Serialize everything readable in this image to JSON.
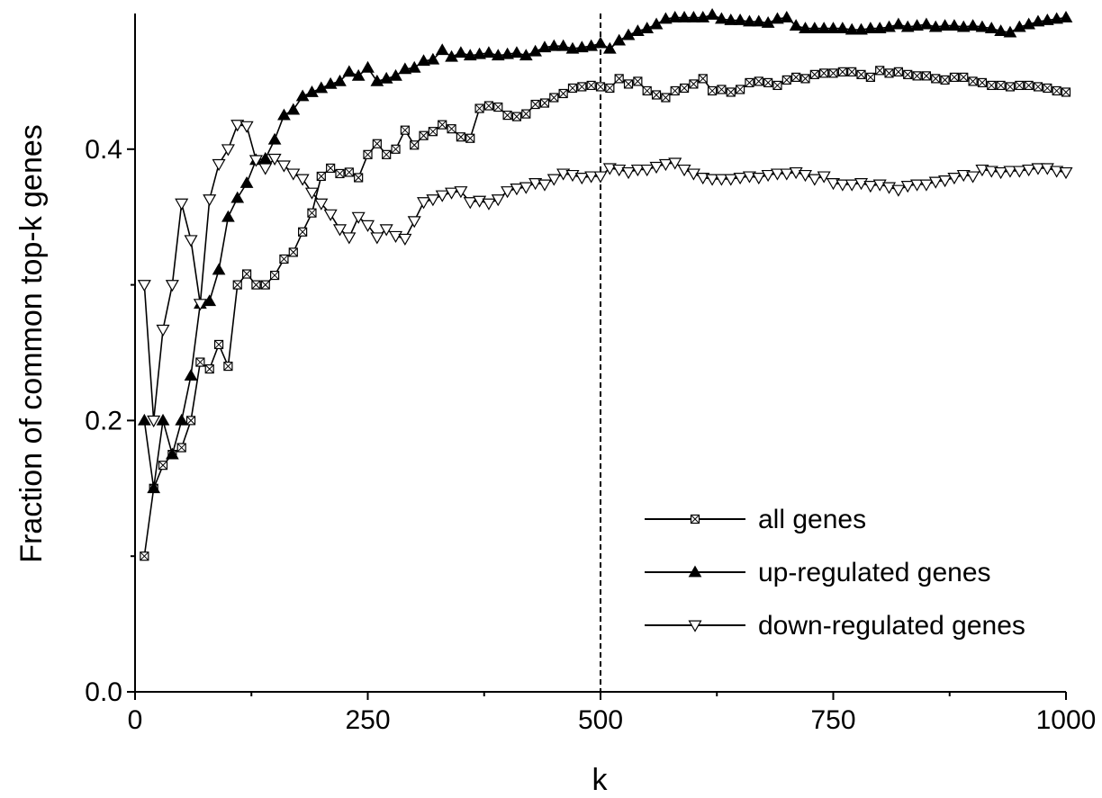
{
  "chart_data": {
    "type": "line",
    "title": "",
    "xlabel": "k",
    "ylabel": "Fraction of common top-k genes",
    "xlim": [
      0,
      1000
    ],
    "ylim": [
      0,
      0.5
    ],
    "xticks": [
      0,
      250,
      500,
      750,
      1000
    ],
    "xtick_labels": [
      "0",
      "250",
      "500",
      "750",
      "1000"
    ],
    "yticks": [
      0.0,
      0.2,
      0.4
    ],
    "ytick_labels": [
      "0.0",
      "0.2",
      "0.4"
    ],
    "grid": false,
    "legend_position": "bottom-right",
    "reference_line": {
      "x": 500,
      "style": "dashed",
      "orientation": "vertical"
    },
    "colors": {
      "line": "#000000",
      "marker_fill_open": "#ffffff",
      "marker_fill_solid": "#000000"
    },
    "series": [
      {
        "name": "all genes",
        "marker": "square-x",
        "x": [
          10,
          20,
          30,
          40,
          50,
          60,
          70,
          80,
          90,
          100,
          110,
          120,
          130,
          140,
          150,
          160,
          170,
          180,
          190,
          200,
          210,
          220,
          230,
          240,
          250,
          260,
          270,
          280,
          290,
          300,
          310,
          320,
          330,
          340,
          350,
          360,
          370,
          380,
          390,
          400,
          410,
          420,
          430,
          440,
          450,
          460,
          470,
          480,
          490,
          500,
          510,
          520,
          530,
          540,
          550,
          560,
          570,
          580,
          590,
          600,
          610,
          620,
          630,
          640,
          650,
          660,
          670,
          680,
          690,
          700,
          710,
          720,
          730,
          740,
          750,
          760,
          770,
          780,
          790,
          800,
          810,
          820,
          830,
          840,
          850,
          860,
          870,
          880,
          890,
          900,
          910,
          920,
          930,
          940,
          950,
          960,
          970,
          980,
          990,
          1000
        ],
        "values": [
          0.1,
          0.15,
          0.167,
          0.175,
          0.18,
          0.2,
          0.243,
          0.238,
          0.256,
          0.24,
          0.3,
          0.308,
          0.3,
          0.3,
          0.307,
          0.319,
          0.324,
          0.339,
          0.353,
          0.38,
          0.386,
          0.382,
          0.383,
          0.379,
          0.396,
          0.404,
          0.396,
          0.4,
          0.414,
          0.403,
          0.41,
          0.413,
          0.418,
          0.415,
          0.409,
          0.408,
          0.43,
          0.432,
          0.431,
          0.425,
          0.424,
          0.426,
          0.433,
          0.434,
          0.438,
          0.441,
          0.445,
          0.446,
          0.447,
          0.446,
          0.445,
          0.452,
          0.448,
          0.45,
          0.443,
          0.44,
          0.438,
          0.443,
          0.445,
          0.448,
          0.452,
          0.443,
          0.444,
          0.442,
          0.444,
          0.449,
          0.45,
          0.449,
          0.447,
          0.451,
          0.453,
          0.452,
          0.455,
          0.456,
          0.456,
          0.457,
          0.457,
          0.455,
          0.453,
          0.458,
          0.456,
          0.457,
          0.455,
          0.454,
          0.454,
          0.452,
          0.451,
          0.453,
          0.453,
          0.45,
          0.449,
          0.447,
          0.447,
          0.446,
          0.447,
          0.447,
          0.446,
          0.445,
          0.443,
          0.442
        ]
      },
      {
        "name": "up-regulated genes",
        "marker": "triangle-up-filled",
        "x": [
          10,
          20,
          30,
          40,
          50,
          60,
          70,
          80,
          90,
          100,
          110,
          120,
          130,
          140,
          150,
          160,
          170,
          180,
          190,
          200,
          210,
          220,
          230,
          240,
          250,
          260,
          270,
          280,
          290,
          300,
          310,
          320,
          330,
          340,
          350,
          360,
          370,
          380,
          390,
          400,
          410,
          420,
          430,
          440,
          450,
          460,
          470,
          480,
          490,
          500,
          510,
          520,
          530,
          540,
          550,
          560,
          570,
          580,
          590,
          600,
          610,
          620,
          630,
          640,
          650,
          660,
          670,
          680,
          690,
          700,
          710,
          720,
          730,
          740,
          750,
          760,
          770,
          780,
          790,
          800,
          810,
          820,
          830,
          840,
          850,
          860,
          870,
          880,
          890,
          900,
          910,
          920,
          930,
          940,
          950,
          960,
          970,
          980,
          990,
          1000
        ],
        "values": [
          0.2,
          0.15,
          0.2,
          0.175,
          0.2,
          0.233,
          0.286,
          0.288,
          0.311,
          0.35,
          0.364,
          0.375,
          0.392,
          0.393,
          0.407,
          0.425,
          0.429,
          0.439,
          0.442,
          0.445,
          0.448,
          0.45,
          0.457,
          0.454,
          0.46,
          0.45,
          0.452,
          0.454,
          0.459,
          0.46,
          0.465,
          0.466,
          0.473,
          0.468,
          0.471,
          0.469,
          0.47,
          0.471,
          0.469,
          0.47,
          0.471,
          0.469,
          0.472,
          0.475,
          0.476,
          0.476,
          0.474,
          0.475,
          0.476,
          0.478,
          0.474,
          0.48,
          0.484,
          0.487,
          0.489,
          0.492,
          0.496,
          0.497,
          0.497,
          0.497,
          0.497,
          0.499,
          0.496,
          0.495,
          0.495,
          0.494,
          0.494,
          0.493,
          0.496,
          0.497,
          0.491,
          0.489,
          0.489,
          0.489,
          0.489,
          0.489,
          0.488,
          0.488,
          0.489,
          0.489,
          0.49,
          0.492,
          0.49,
          0.491,
          0.492,
          0.49,
          0.491,
          0.491,
          0.49,
          0.491,
          0.49,
          0.489,
          0.487,
          0.486,
          0.49,
          0.492,
          0.494,
          0.495,
          0.496,
          0.497
        ]
      },
      {
        "name": "down-regulated genes",
        "marker": "triangle-down-open",
        "x": [
          10,
          20,
          30,
          40,
          50,
          60,
          70,
          80,
          90,
          100,
          110,
          120,
          130,
          140,
          150,
          160,
          170,
          180,
          190,
          200,
          210,
          220,
          230,
          240,
          250,
          260,
          270,
          280,
          290,
          300,
          310,
          320,
          330,
          340,
          350,
          360,
          370,
          380,
          390,
          400,
          410,
          420,
          430,
          440,
          450,
          460,
          470,
          480,
          490,
          500,
          510,
          520,
          530,
          540,
          550,
          560,
          570,
          580,
          590,
          600,
          610,
          620,
          630,
          640,
          650,
          660,
          670,
          680,
          690,
          700,
          710,
          720,
          730,
          740,
          750,
          760,
          770,
          780,
          790,
          800,
          810,
          820,
          830,
          840,
          850,
          860,
          870,
          880,
          890,
          900,
          910,
          920,
          930,
          940,
          950,
          960,
          970,
          980,
          990,
          1000
        ],
        "values": [
          0.3,
          0.2,
          0.267,
          0.3,
          0.36,
          0.333,
          0.286,
          0.363,
          0.389,
          0.4,
          0.418,
          0.417,
          0.392,
          0.386,
          0.393,
          0.388,
          0.382,
          0.378,
          0.368,
          0.36,
          0.352,
          0.341,
          0.335,
          0.35,
          0.344,
          0.335,
          0.341,
          0.336,
          0.334,
          0.347,
          0.361,
          0.363,
          0.366,
          0.368,
          0.369,
          0.361,
          0.362,
          0.36,
          0.363,
          0.369,
          0.371,
          0.372,
          0.375,
          0.374,
          0.378,
          0.382,
          0.381,
          0.379,
          0.38,
          0.38,
          0.386,
          0.385,
          0.383,
          0.385,
          0.385,
          0.387,
          0.389,
          0.39,
          0.385,
          0.382,
          0.379,
          0.378,
          0.378,
          0.378,
          0.379,
          0.38,
          0.379,
          0.381,
          0.382,
          0.382,
          0.383,
          0.381,
          0.378,
          0.38,
          0.375,
          0.374,
          0.374,
          0.375,
          0.373,
          0.374,
          0.372,
          0.37,
          0.373,
          0.374,
          0.374,
          0.376,
          0.377,
          0.379,
          0.381,
          0.38,
          0.385,
          0.384,
          0.383,
          0.384,
          0.384,
          0.385,
          0.386,
          0.386,
          0.384,
          0.383
        ]
      }
    ]
  }
}
